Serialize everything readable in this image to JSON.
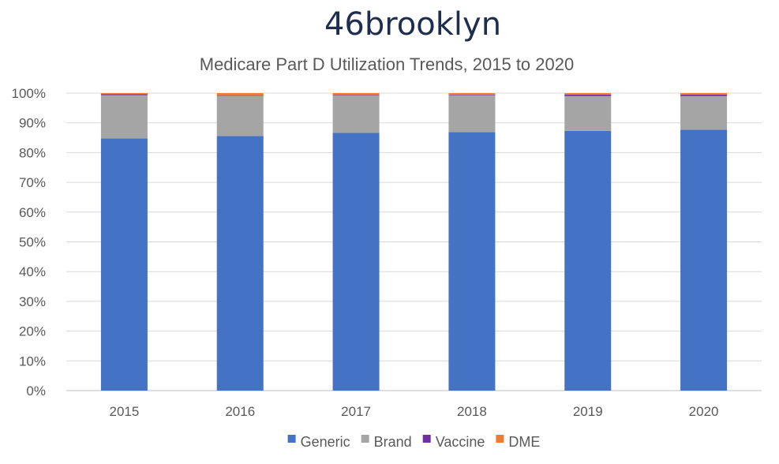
{
  "brand": {
    "name": "46brooklyn",
    "color": "#1f2d4f"
  },
  "chart_data": {
    "type": "bar",
    "stacked": true,
    "title": "Medicare Part D Utilization Trends, 2015 to 2020",
    "xlabel": "",
    "ylabel": "",
    "ylim": [
      0,
      100
    ],
    "yticks": [
      0,
      10,
      20,
      30,
      40,
      50,
      60,
      70,
      80,
      90,
      100
    ],
    "ytick_labels": [
      "0%",
      "10%",
      "20%",
      "30%",
      "40%",
      "50%",
      "60%",
      "70%",
      "80%",
      "90%",
      "100%"
    ],
    "grid": true,
    "legend_position": "bottom",
    "categories": [
      "2015",
      "2016",
      "2017",
      "2018",
      "2019",
      "2020"
    ],
    "series": [
      {
        "name": "Generic",
        "color": "#4472c4",
        "values": [
          84.8,
          85.6,
          86.6,
          86.9,
          87.3,
          87.7
        ]
      },
      {
        "name": "Brand",
        "color": "#a5a5a5",
        "values": [
          14.5,
          13.5,
          12.6,
          12.4,
          11.7,
          11.3
        ]
      },
      {
        "name": "Vaccine",
        "color": "#7030a0",
        "values": [
          0.3,
          0.2,
          0.2,
          0.2,
          0.5,
          0.5
        ]
      },
      {
        "name": "DME",
        "color": "#ed7d31",
        "values": [
          0.4,
          0.7,
          0.6,
          0.5,
          0.5,
          0.5
        ]
      }
    ]
  }
}
